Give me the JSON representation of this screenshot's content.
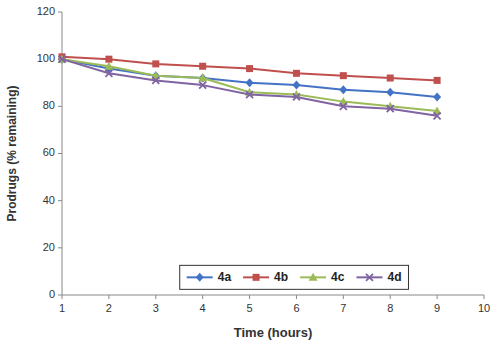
{
  "chart_data": {
    "type": "line",
    "x_label": "Time (hours)",
    "y_label": "Prodrugs (% remaining)",
    "x": [
      1,
      2,
      3,
      4,
      5,
      6,
      7,
      8,
      9
    ],
    "series": [
      {
        "name": "4a",
        "color": "#4472C4",
        "marker": "diamond",
        "values": [
          100,
          96,
          93,
          92,
          90,
          89,
          87,
          86,
          84
        ]
      },
      {
        "name": "4b",
        "color": "#C0504D",
        "marker": "square",
        "values": [
          101,
          100,
          98,
          97,
          96,
          94,
          93,
          92,
          91
        ]
      },
      {
        "name": "4c",
        "color": "#9BBB59",
        "marker": "triangle",
        "values": [
          100,
          97,
          93,
          92,
          86,
          85,
          82,
          80,
          78
        ]
      },
      {
        "name": "4d",
        "color": "#8064A2",
        "marker": "x",
        "values": [
          100,
          94,
          91,
          89,
          85,
          84,
          80,
          79,
          76
        ]
      }
    ],
    "xlim": [
      1,
      10
    ],
    "ylim": [
      0,
      120
    ],
    "xticks": [
      1,
      2,
      3,
      4,
      5,
      6,
      7,
      8,
      9,
      10
    ],
    "yticks": [
      0,
      20,
      40,
      60,
      80,
      100,
      120
    ],
    "grid": false,
    "legend": "bottom"
  }
}
